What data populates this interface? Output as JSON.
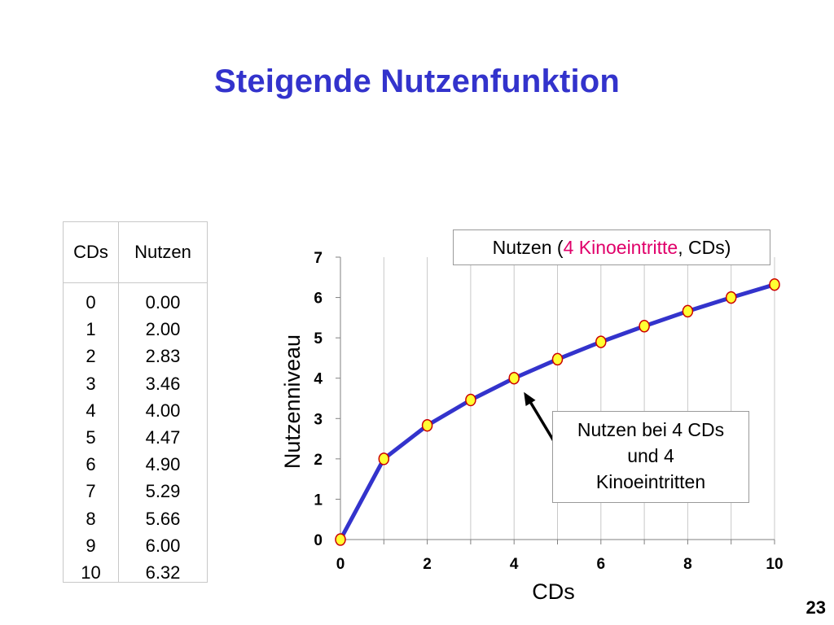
{
  "title": "Steigende Nutzenfunktion",
  "table": {
    "headers": [
      "CDs",
      "Nutzen"
    ],
    "rows": [
      [
        "0",
        "0.00"
      ],
      [
        "1",
        "2.00"
      ],
      [
        "2",
        "2.83"
      ],
      [
        "3",
        "3.46"
      ],
      [
        "4",
        "4.00"
      ],
      [
        "5",
        "4.47"
      ],
      [
        "6",
        "4.90"
      ],
      [
        "7",
        "5.29"
      ],
      [
        "8",
        "5.66"
      ],
      [
        "9",
        "6.00"
      ],
      [
        "10",
        "6.32"
      ]
    ]
  },
  "legend": {
    "prefix": "Nutzen (",
    "highlight": "4 Kinoeintritte",
    "suffix": ", CDs)",
    "highlight_color": "#e0006a"
  },
  "annotation": {
    "lines": [
      "Nutzen bei 4 CDs",
      "und 4",
      "Kinoeintritten"
    ],
    "points_to": [
      4,
      4.0
    ]
  },
  "page_number": "23",
  "chart_data": {
    "type": "line",
    "x": [
      0,
      1,
      2,
      3,
      4,
      5,
      6,
      7,
      8,
      9,
      10
    ],
    "series": [
      {
        "values": [
          0.0,
          2.0,
          2.83,
          3.46,
          4.0,
          4.47,
          4.9,
          5.29,
          5.66,
          6.0,
          6.32
        ]
      }
    ],
    "xlabel": "CDs",
    "ylabel": "Nutzenniveau",
    "xlim": [
      0,
      10
    ],
    "ylim": [
      0,
      7
    ],
    "xticks": [
      0,
      2,
      4,
      6,
      8,
      10
    ],
    "yticks": [
      0,
      1,
      2,
      3,
      4,
      5,
      6,
      7
    ],
    "grid": "vertical",
    "line_color": "#3333cc",
    "marker_fill": "#ffff33",
    "marker_stroke": "#cc0000"
  }
}
